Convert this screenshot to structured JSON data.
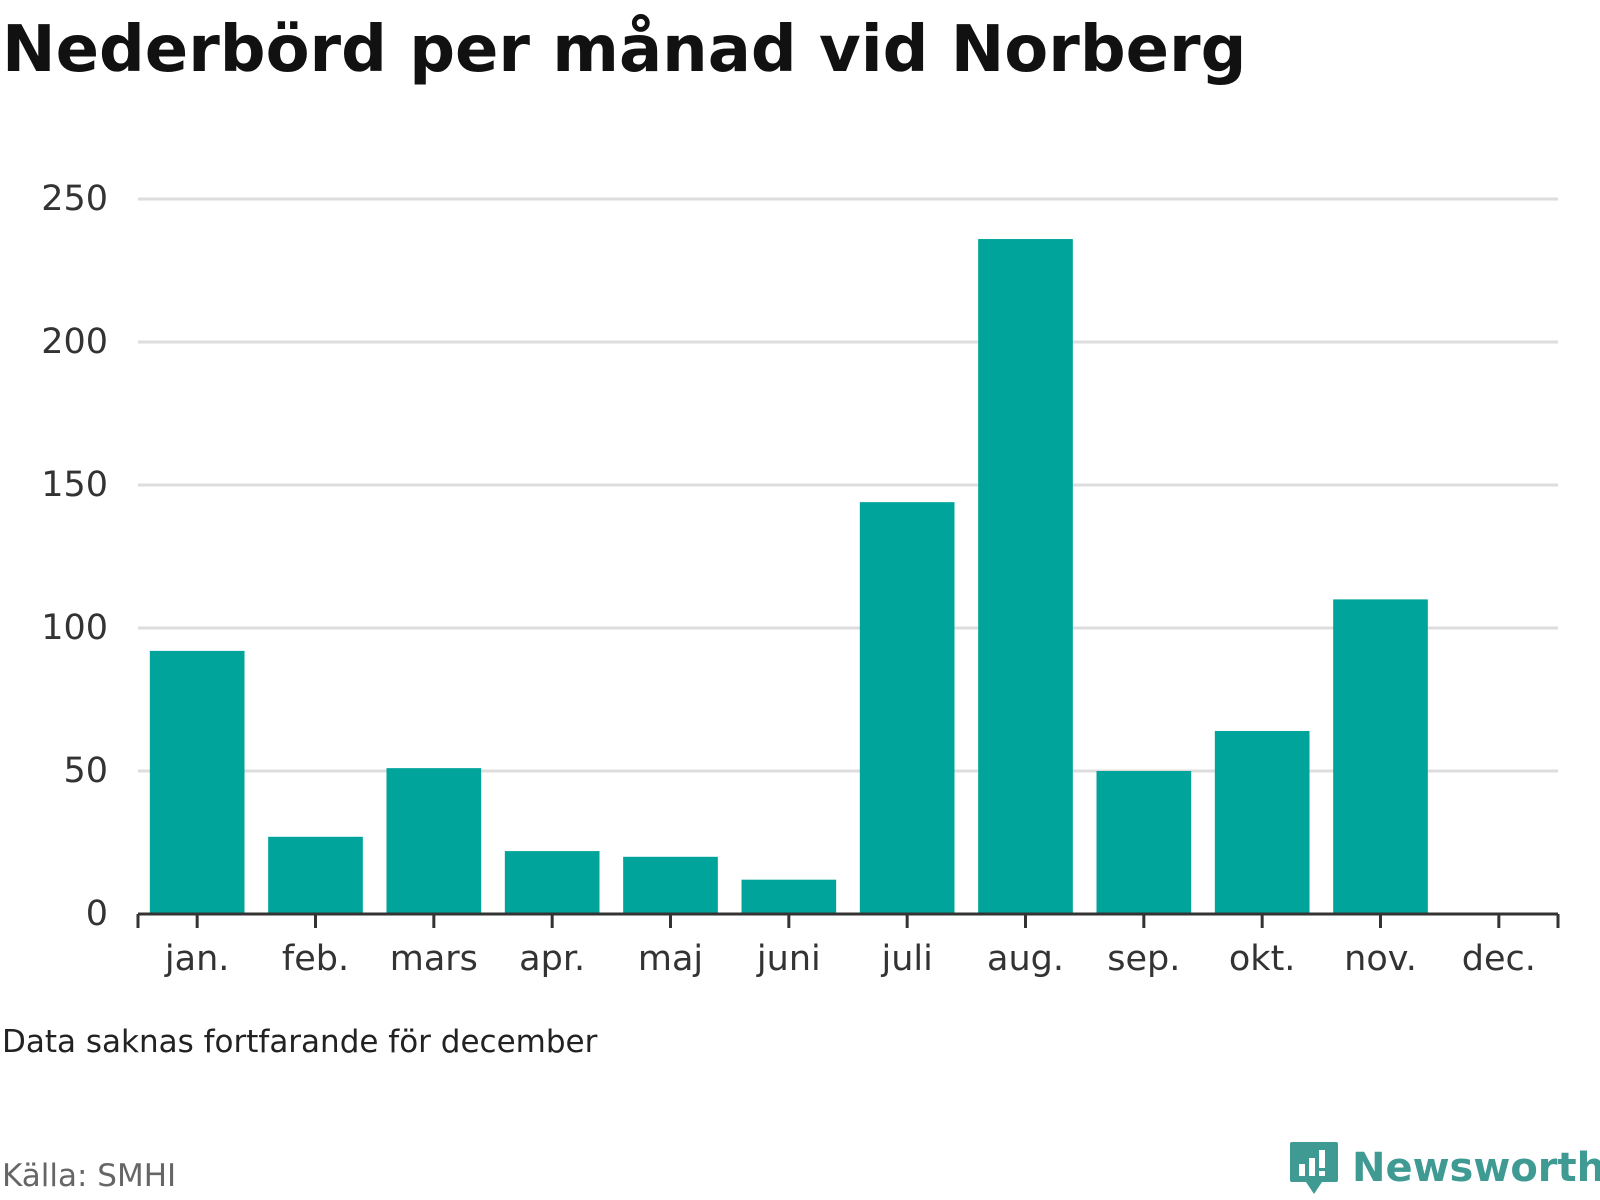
{
  "colors": {
    "bar": "#00a49a",
    "grid": "#dddddd",
    "axis": "#333333",
    "brand": "#3e9a92"
  },
  "footer": {
    "note": "Data saknas fortfarande för december",
    "source": "Källa: SMHI"
  },
  "brand": {
    "name": "Newsworthy",
    "icon": "newsworthy-logo-icon"
  },
  "chart_data": {
    "type": "bar",
    "title": "Nederbörd per månad vid Norberg",
    "xlabel": "",
    "ylabel": "",
    "categories": [
      "jan.",
      "feb.",
      "mars",
      "apr.",
      "maj",
      "juni",
      "juli",
      "aug.",
      "sep.",
      "okt.",
      "nov.",
      "dec."
    ],
    "values": [
      92,
      27,
      51,
      22,
      20,
      12,
      144,
      236,
      50,
      64,
      110,
      null
    ],
    "ylim": [
      0,
      250
    ],
    "yticks": [
      "0",
      "50",
      "100",
      "150",
      "200",
      "250"
    ],
    "grid": true,
    "legend": "none"
  }
}
